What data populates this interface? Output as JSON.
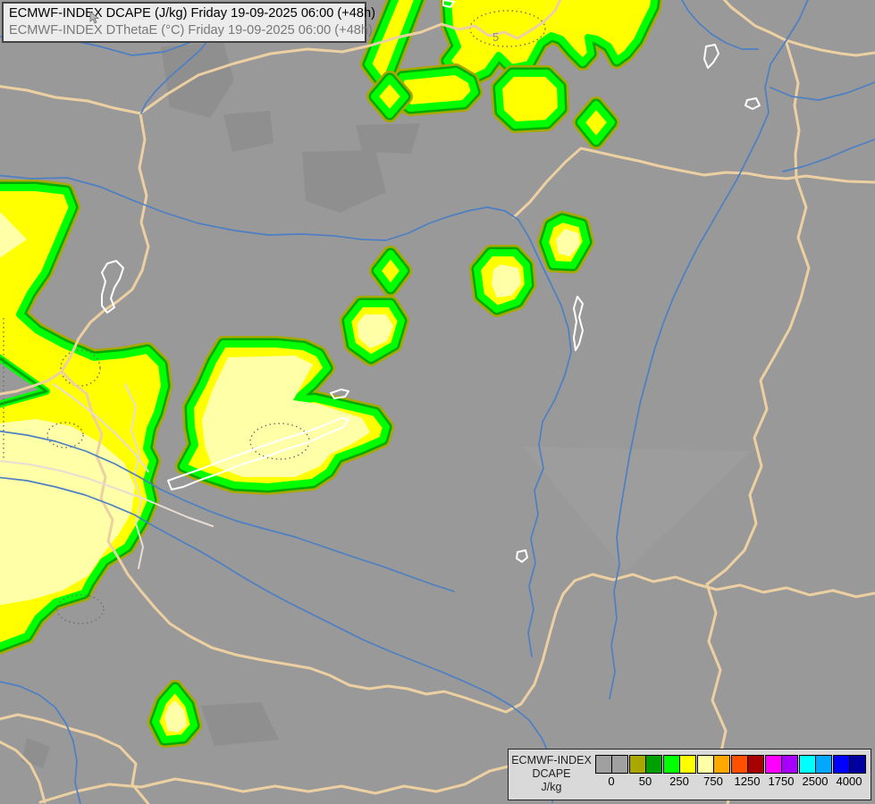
{
  "header": {
    "line1": "ECMWF-INDEX DCAPE (J/kg) Friday 19-09-2025 06:00 (+48h)",
    "line2": "ECMWF-INDEX DThetaE (°C) Friday 19-09-2025 06:00 (+48h)"
  },
  "legend": {
    "title_lines": [
      "ECMWF-INDEX",
      "DCAPE",
      "J/kg"
    ],
    "scale": [
      {
        "colors": [
          "#a0a0a0",
          "#a0a0a0"
        ],
        "label": "0"
      },
      {
        "colors": [
          "#a8a800",
          "#00a000"
        ],
        "label": "50"
      },
      {
        "colors": [
          "#00ff00",
          "#ffff00"
        ],
        "label": "250"
      },
      {
        "colors": [
          "#ffffa8",
          "#ffa800"
        ],
        "label": "750"
      },
      {
        "colors": [
          "#ff5000",
          "#a80000"
        ],
        "label": "1250"
      },
      {
        "colors": [
          "#ff00ff",
          "#a800ff"
        ],
        "label": "1750"
      },
      {
        "colors": [
          "#00ffff",
          "#00a8ff"
        ],
        "label": "2500"
      },
      {
        "colors": [
          "#0000ff",
          "#0000a0"
        ],
        "label": "4000"
      }
    ]
  },
  "map": {
    "contour_labels": [
      {
        "text": "5"
      }
    ],
    "colors": {
      "background": "#999999",
      "shade_dark": "#8f8f8f",
      "country_border": "#ecd0a2",
      "internal_border": "#e8dcd4",
      "river": "#4d7fc4",
      "lake_outline": "#ffffff",
      "dcape_olive": "#a8a800",
      "dcape_green_dark": "#00a800",
      "dcape_green_bright": "#00ff00",
      "dcape_yellow": "#ffff00",
      "dcape_pale_yellow": "#ffffa8",
      "dthetae_contour": "#6e6e6e"
    }
  }
}
